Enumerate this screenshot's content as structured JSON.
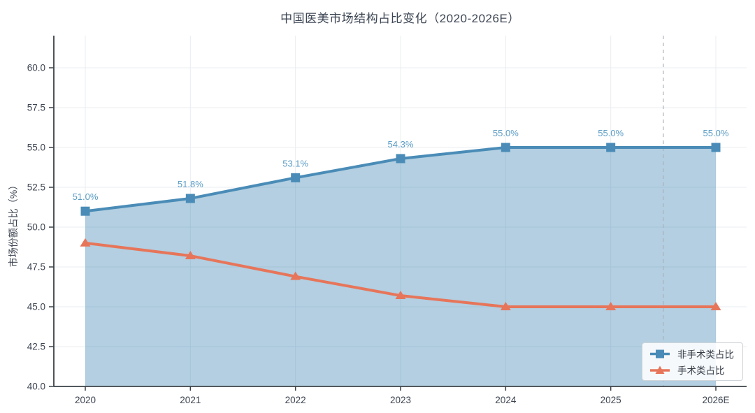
{
  "chart_data": {
    "type": "line",
    "title": "中国医美市场结构占比变化（2020-2026E）",
    "ylabel": "市场份额占比（%）",
    "categories": [
      "2020",
      "2021",
      "2022",
      "2023",
      "2024",
      "2025",
      "2026E"
    ],
    "series": [
      {
        "name": "非手术类占比",
        "marker": "square",
        "color": "#4a8cb7",
        "area_fill": true,
        "values": [
          51.0,
          51.8,
          53.1,
          54.3,
          55.0,
          55.0,
          55.0
        ],
        "point_labels": [
          "51.0%",
          "51.8%",
          "53.1%",
          "54.3%",
          "55.0%",
          "55.0%",
          "55.0%"
        ]
      },
      {
        "name": "手术类占比",
        "marker": "triangle",
        "color": "#e7755a",
        "area_fill": false,
        "values": [
          49.0,
          48.2,
          46.9,
          45.7,
          45.0,
          45.0,
          45.0
        ],
        "point_labels": []
      }
    ],
    "yticks": [
      40.0,
      42.5,
      45.0,
      47.5,
      50.0,
      52.5,
      55.0,
      57.5,
      60.0
    ],
    "ylim": [
      40.0,
      62.0
    ],
    "grid": true,
    "legend_position": "lower right",
    "forecast_divider": {
      "between": [
        "2025",
        "2026E"
      ],
      "style": "dashed"
    },
    "colors": {
      "area_fill": "rgba(74,140,183,0.42)",
      "grid": "#e9edf1",
      "spine": "#3a4047",
      "tick_label": "#3d4451",
      "title": "#3c4553",
      "data_label": "#5a9cc5",
      "divider": "#a9b2ba",
      "legend_border": "#cfd4d8"
    }
  }
}
